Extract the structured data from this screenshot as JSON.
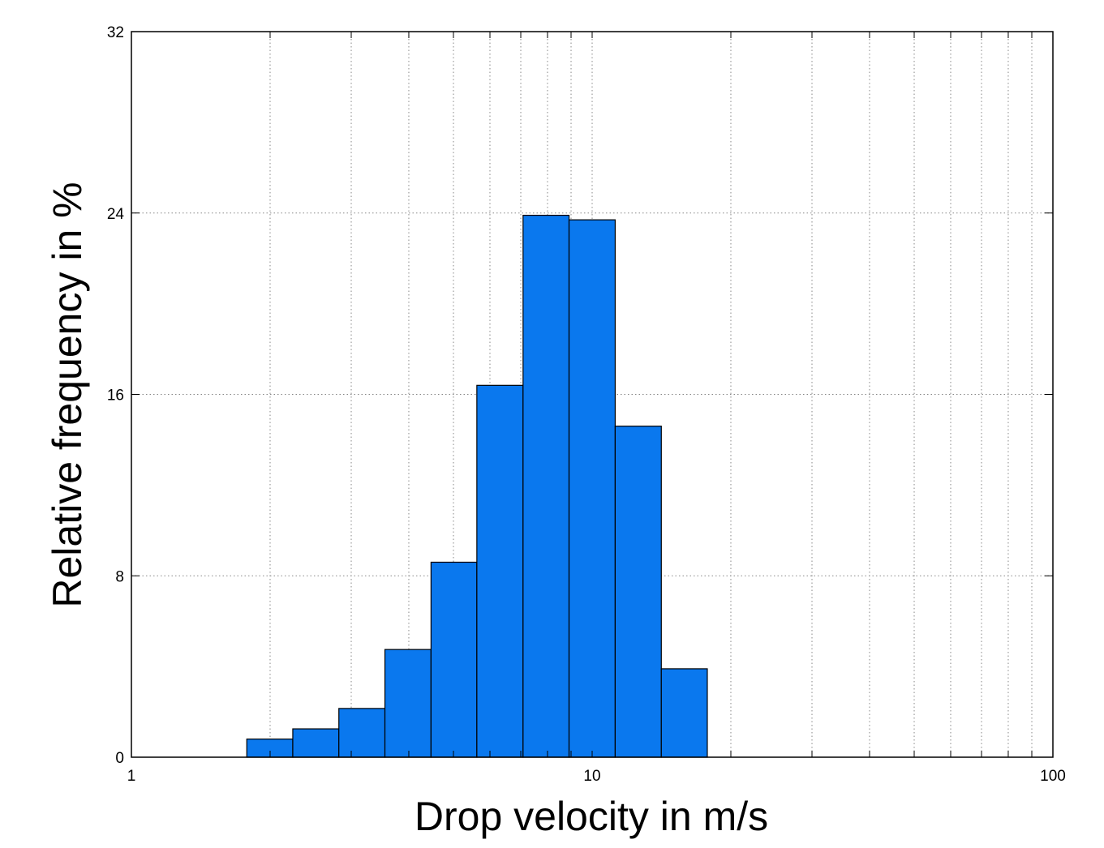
{
  "chart_data": {
    "type": "bar",
    "x_scale": "log",
    "grid": true,
    "xlabel": "Drop velocity in m/s",
    "ylabel": "Relative frequency in %",
    "xlim": [
      1,
      100
    ],
    "ylim": [
      0,
      32
    ],
    "x_ticks": [
      {
        "value": 1,
        "label": "1"
      },
      {
        "value": 10,
        "label": "10"
      },
      {
        "value": 100,
        "label": "100"
      }
    ],
    "y_ticks": [
      {
        "value": 0,
        "label": "0"
      },
      {
        "value": 8,
        "label": "8"
      },
      {
        "value": 16,
        "label": "16"
      },
      {
        "value": 24,
        "label": "24"
      },
      {
        "value": 32,
        "label": "32"
      }
    ],
    "bins": [
      {
        "x0": 1.78,
        "x1": 2.24,
        "value": 0.8
      },
      {
        "x0": 2.24,
        "x1": 2.82,
        "value": 1.25
      },
      {
        "x0": 2.82,
        "x1": 3.55,
        "value": 2.15
      },
      {
        "x0": 3.55,
        "x1": 4.47,
        "value": 4.75
      },
      {
        "x0": 4.47,
        "x1": 5.62,
        "value": 8.6
      },
      {
        "x0": 5.62,
        "x1": 7.08,
        "value": 16.4
      },
      {
        "x0": 7.08,
        "x1": 8.91,
        "value": 23.9
      },
      {
        "x0": 8.91,
        "x1": 11.22,
        "value": 23.7
      },
      {
        "x0": 11.22,
        "x1": 14.13,
        "value": 14.6
      },
      {
        "x0": 14.13,
        "x1": 17.78,
        "value": 3.9
      }
    ],
    "colors": {
      "bar_fill": "#0a78ee",
      "bar_stroke": "#000000",
      "grid": "#888888"
    }
  }
}
